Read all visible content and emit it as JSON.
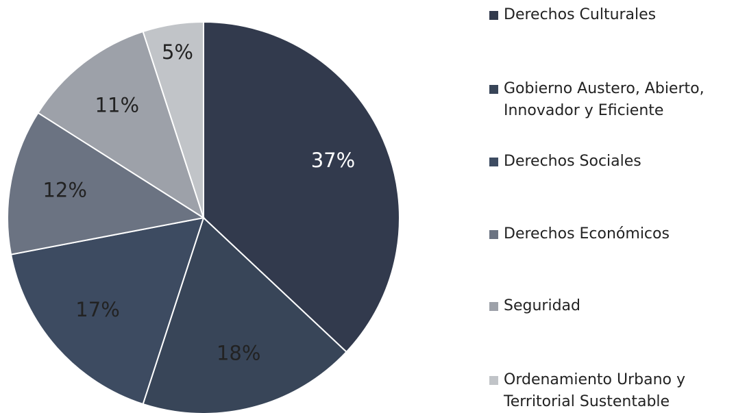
{
  "chart_data": {
    "type": "pie",
    "categories": [
      "Derechos Culturales",
      "Gobierno Austero, Abierto, Innovador y Eficiente",
      "Derechos Sociales",
      "Derechos Económicos",
      "Seguridad",
      "Ordenamiento Urbano y Territorial Sustentable"
    ],
    "values": [
      37,
      18,
      17,
      12,
      11,
      5
    ],
    "value_labels": [
      "37%",
      "18%",
      "17%",
      "12%",
      "11%",
      "5%"
    ],
    "colors": [
      "#323a4d",
      "#384558",
      "#3d4b61",
      "#6b7382",
      "#9da1a9",
      "#c1c4c8"
    ],
    "legend": "right"
  }
}
